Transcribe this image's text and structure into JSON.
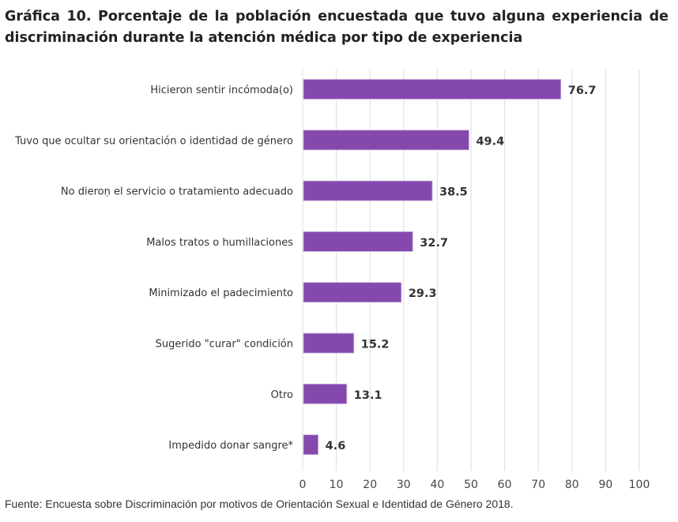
{
  "chart_data": {
    "type": "bar",
    "orientation": "horizontal",
    "title": "Gráfica 10. Porcentaje de la población encuestada que tuvo alguna experiencia de discriminación durante la atención médica por tipo de experiencia",
    "categories": [
      "Hicieron sentir incómoda(o)",
      "Tuvo que ocultar su orientación o identidad de género",
      "No dieroṇ el servicio o tratamiento adecuado",
      "Malos tratos o humillaciones",
      "Minimizado el padecimiento",
      "Sugerido \"curar\" condición",
      "Otro",
      "Impedido donar sangre*"
    ],
    "values": [
      76.7,
      49.4,
      38.5,
      32.7,
      29.3,
      15.2,
      13.1,
      4.6
    ],
    "data_labels": [
      "76.7",
      "49.4",
      "38.5",
      "32.7",
      "29.3",
      "15.2",
      "13.1",
      "4.6"
    ],
    "xlim": [
      0,
      100
    ],
    "xticks": [
      "0",
      "10",
      "20",
      "30",
      "40",
      "50",
      "60",
      "70",
      "80",
      "90",
      "100"
    ],
    "grid": true,
    "bar_color": "#8549ad",
    "source": "Fuente: Encuesta sobre Discriminación por motivos de Orientación Sexual e Identidad de Género 2018."
  }
}
